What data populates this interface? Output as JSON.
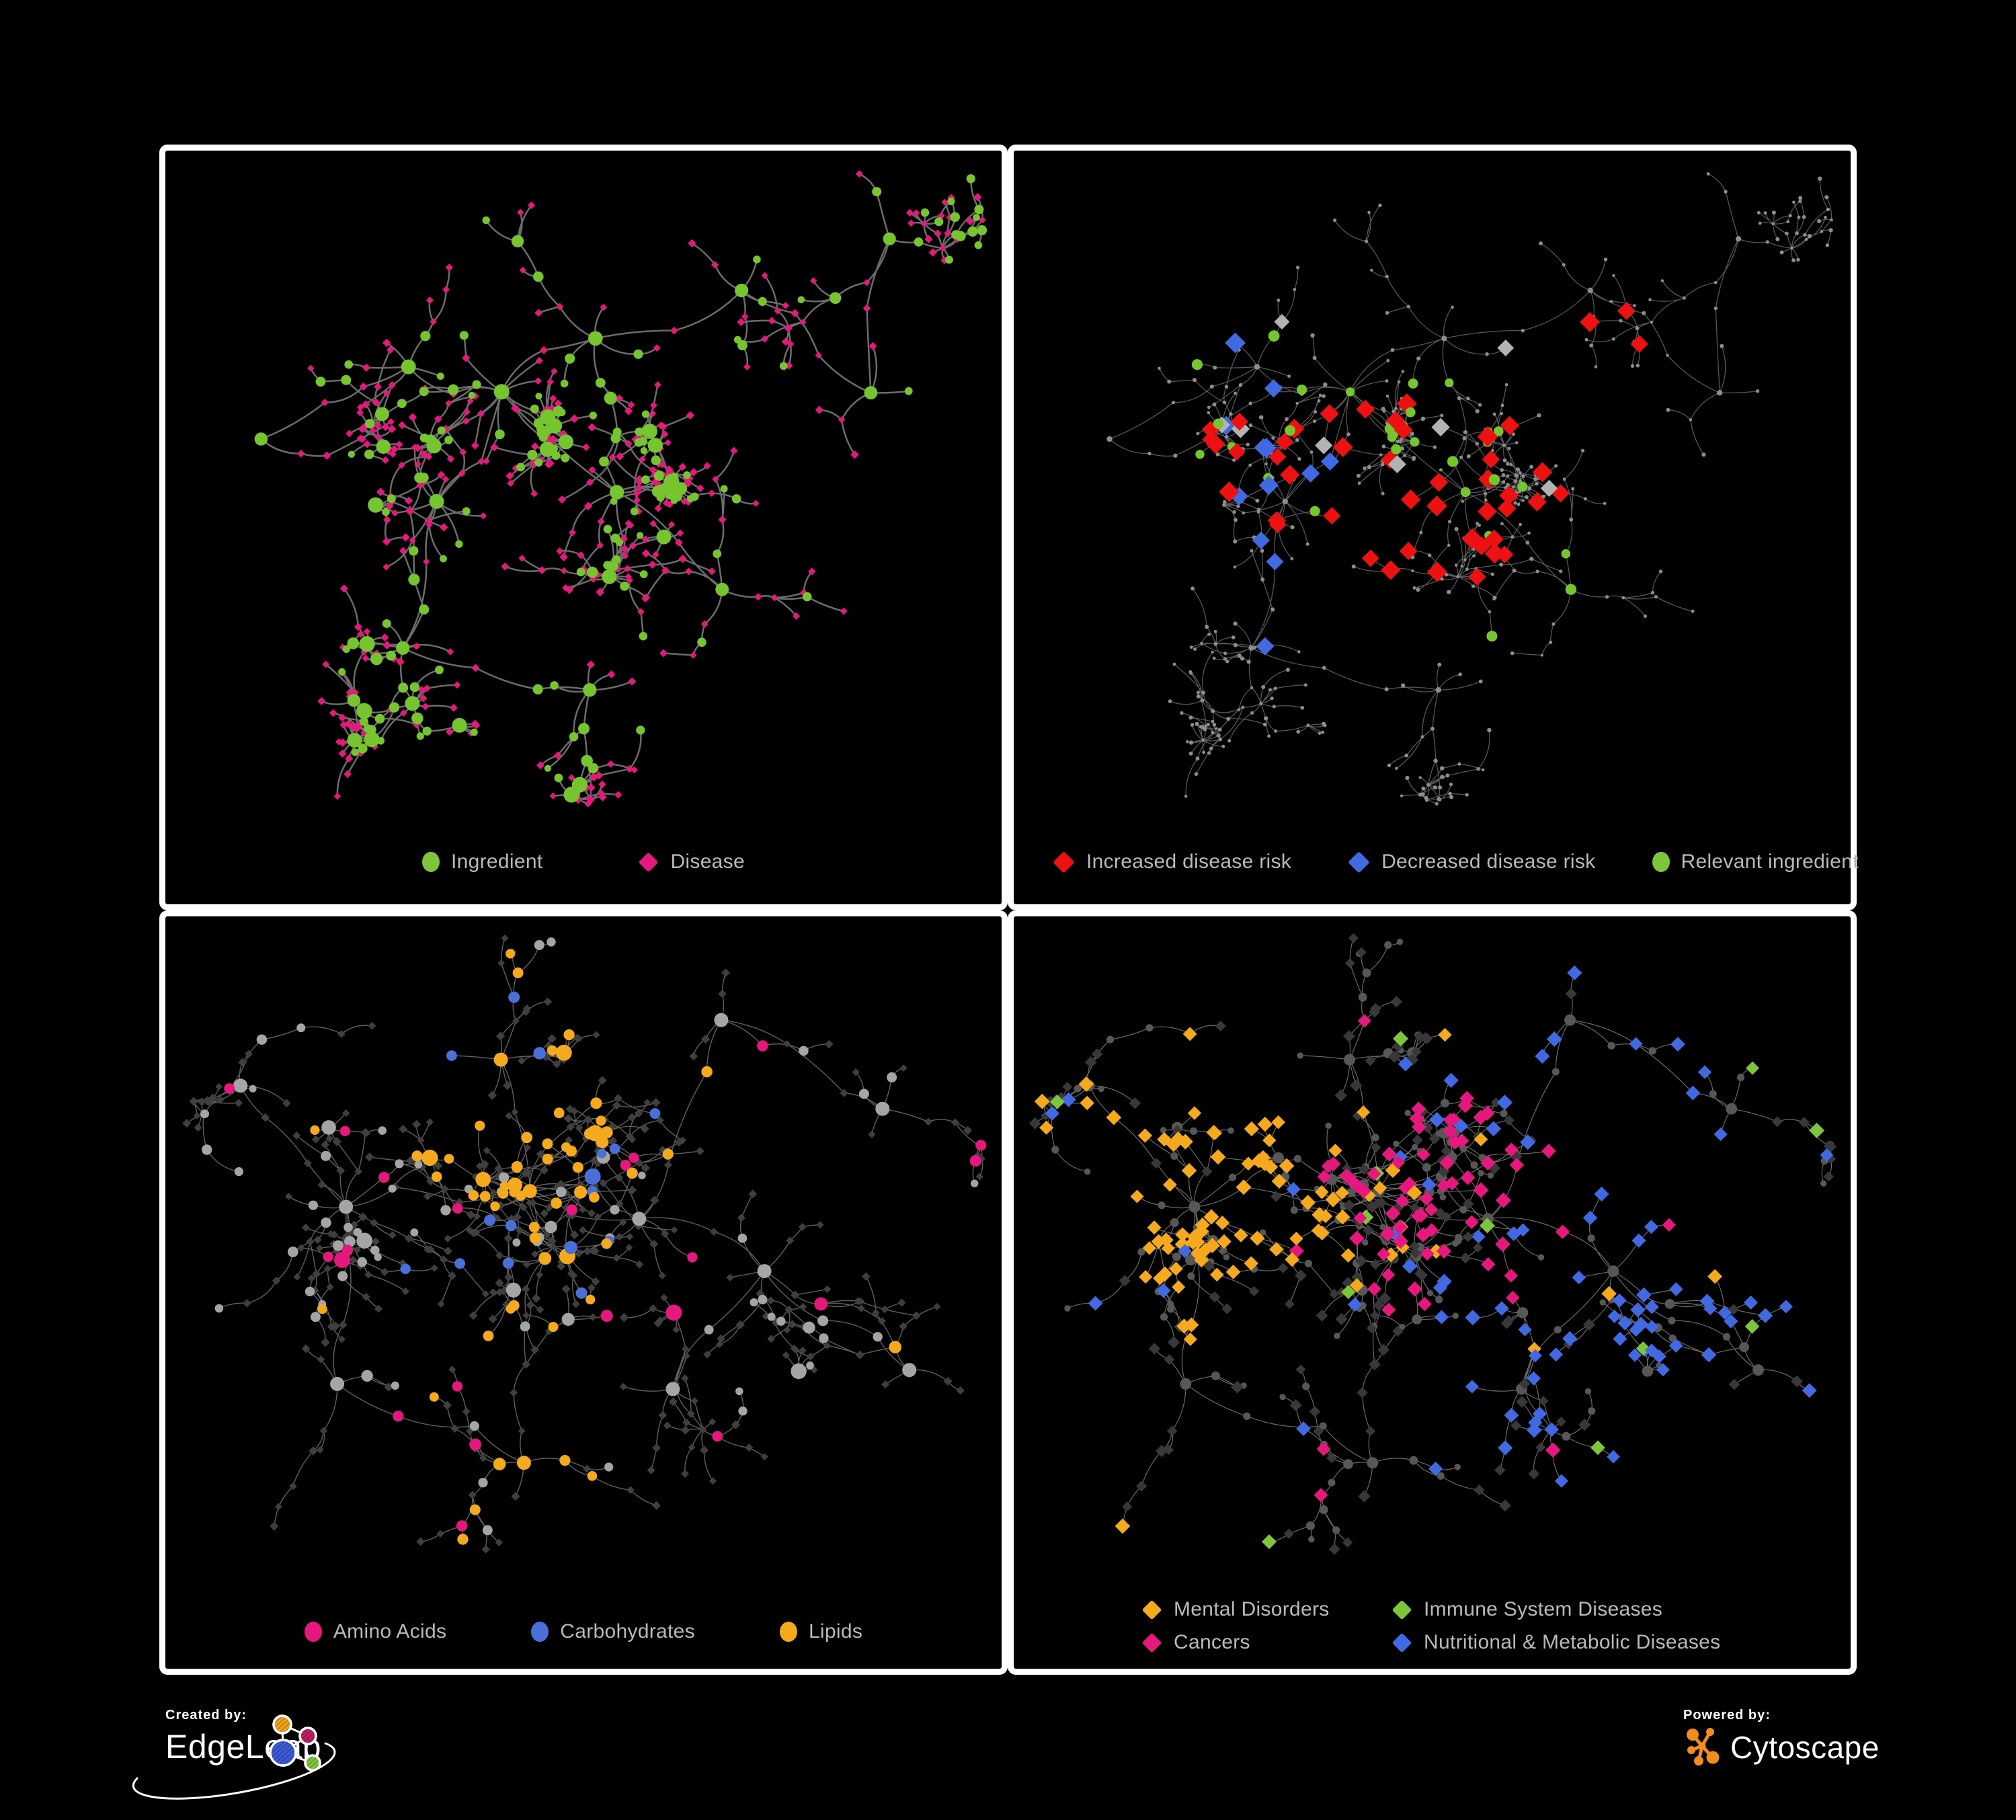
{
  "page": {
    "background": "#000000",
    "panel_border": "#ffffff",
    "panel_background": "#000000",
    "legend_text_color": "#b9b9b9"
  },
  "panels": [
    {
      "id": "ingredient-disease",
      "position": "top-left",
      "legend": [
        {
          "label": "Ingredient",
          "shape": "circle",
          "color": "#7dc63c"
        },
        {
          "label": "Disease",
          "shape": "diamond",
          "color": "#e6187d"
        }
      ],
      "network": {
        "edge_color": "#787878",
        "edge_width": 2.5,
        "edge_opacity": 0.9,
        "circle_color": "#76c52f",
        "diamond_color": "#e6187d"
      }
    },
    {
      "id": "disease-risk",
      "position": "top-right",
      "legend": [
        {
          "label": "Increased disease risk",
          "shape": "diamond",
          "color": "#ee1111"
        },
        {
          "label": "Decreased disease risk",
          "shape": "diamond",
          "color": "#4169e1"
        },
        {
          "label": "Relevant ingredient",
          "shape": "circle",
          "color": "#7dc63c"
        }
      ],
      "network": {
        "edge_color": "#696969",
        "edge_width": 1.25,
        "edge_opacity": 0.85,
        "base_color": "#8d8d8d",
        "groups": [
          {
            "name": "increased-disease-risk",
            "color": "#ee1111",
            "shape": "diamond",
            "count": 46,
            "zones": [
              0,
              2,
              3,
              4,
              5,
              11
            ],
            "scatter": 0.015,
            "sigma": 0.13,
            "size": 10
          },
          {
            "name": "decreased-disease-risk",
            "color": "#4169e1",
            "shape": "diamond",
            "count": 12,
            "zones": [
              1,
              3
            ],
            "scatter": 0.008,
            "sigma": 0.1,
            "size": 10
          },
          {
            "name": "neutral",
            "color": "#b3b3b3",
            "shape": "diamond",
            "count": 8,
            "zones": [
              1,
              2,
              4
            ],
            "scatter": 0.005,
            "sigma": 0.12,
            "size": 9
          },
          {
            "name": "relevant-ingredient",
            "color": "#76c52f",
            "shape": "circle",
            "count": 32,
            "zones": [
              0,
              1,
              2,
              3,
              4
            ],
            "scatter": 0.02,
            "sigma": 0.13,
            "size": 6.5
          }
        ]
      }
    },
    {
      "id": "nutrient-classes",
      "position": "bottom-left",
      "legend": [
        {
          "label": "Amino Acids",
          "shape": "circle",
          "color": "#e6187d"
        },
        {
          "label": "Carbohydrates",
          "shape": "circle",
          "color": "#4a6fd8"
        },
        {
          "label": "Lipids",
          "shape": "circle",
          "color": "#f5a91c"
        }
      ],
      "network": {
        "edge_color": "#939393",
        "edge_width": 1.4,
        "edge_opacity": 0.65,
        "circle_base": "#a5a5a5",
        "diamond_base": "#3f3f3f",
        "groups": [
          {
            "name": "lipids",
            "color": "#f5a91c",
            "shape": "circle",
            "count": 62,
            "zones": [
              4,
              1,
              8
            ],
            "scatter": 0.05,
            "sigma": 0.12,
            "size": 7
          },
          {
            "name": "carbohydrates",
            "color": "#4a6fd8",
            "shape": "circle",
            "count": 16,
            "zones": [
              4,
              1
            ],
            "scatter": 0.02,
            "sigma": 0.09,
            "size": 7
          },
          {
            "name": "amino-acids",
            "color": "#e6187d",
            "shape": "circle",
            "count": 22,
            "zones": [],
            "scatter": 1,
            "sigma": 0.12,
            "size": 7.5
          }
        ]
      }
    },
    {
      "id": "disease-categories",
      "position": "bottom-right",
      "legend": [
        {
          "label": "Mental Disorders",
          "shape": "diamond",
          "color": "#f5a91c"
        },
        {
          "label": "Immune System Diseases",
          "shape": "diamond",
          "color": "#7dc63c"
        },
        {
          "label": "Cancers",
          "shape": "diamond",
          "color": "#e6187d"
        },
        {
          "label": "Nutritional & Metabolic Diseases",
          "shape": "diamond",
          "color": "#4169e1"
        }
      ],
      "network": {
        "edge_color": "#8b8b8b",
        "edge_width": 1.15,
        "edge_opacity": 0.8,
        "circle_base": "#575757",
        "diamond_base": "#383838",
        "groups": [
          {
            "name": "mental-disorders",
            "color": "#f5a91c",
            "shape": "diamond",
            "count": 95,
            "zones": [
              0
            ],
            "scatter": 0.012,
            "sigma": 0.11,
            "size": 7
          },
          {
            "name": "cancers",
            "color": "#e6187d",
            "shape": "diamond",
            "count": 68,
            "zones": [
              1,
              2
            ],
            "scatter": 0.02,
            "sigma": 0.11,
            "size": 7
          },
          {
            "name": "nutritional-metabolic-diseases",
            "color": "#4169e1",
            "shape": "diamond",
            "count": 82,
            "zones": [
              3,
              5,
              6,
              9,
              11
            ],
            "scatter": 0.06,
            "sigma": 0.12,
            "size": 7
          },
          {
            "name": "immune-system-diseases",
            "color": "#7dc63c",
            "shape": "diamond",
            "count": 12,
            "zones": [],
            "scatter": 1,
            "sigma": 0.12,
            "size": 7
          }
        ]
      }
    }
  ],
  "footer": {
    "created_by_label": "Created by:",
    "created_by_name": "EdgeLeap",
    "powered_by_label": "Powered by:",
    "powered_by_name": "Cytoscape",
    "edgeleap_logo_colors": {
      "orange": "#f0a31c",
      "magenta": "#c21e63",
      "blue": "#3b5bd6",
      "green": "#7dc63c",
      "outline": "#ffffff"
    },
    "cytoscape_logo_color": "#f28c1e"
  },
  "chart_data": {
    "type": "network",
    "panels": [
      {
        "panel": "top-left",
        "content": "full association network",
        "node_types": [
          {
            "type": "Ingredient",
            "shape": "circle",
            "color": "#7dc63c"
          },
          {
            "type": "Disease",
            "shape": "diamond",
            "color": "#e6187d"
          }
        ]
      },
      {
        "panel": "top-right",
        "content": "same network, risk-direction highlights on gray base",
        "node_types": [
          {
            "type": "Increased disease risk",
            "shape": "diamond",
            "color": "#ee1111"
          },
          {
            "type": "Decreased disease risk",
            "shape": "diamond",
            "color": "#4169e1"
          },
          {
            "type": "Relevant ingredient",
            "shape": "circle",
            "color": "#7dc63c"
          }
        ]
      },
      {
        "panel": "bottom-left",
        "content": "same network, ingredient-class highlights",
        "node_types": [
          {
            "type": "Amino Acids",
            "shape": "circle",
            "color": "#e6187d"
          },
          {
            "type": "Carbohydrates",
            "shape": "circle",
            "color": "#4a6fd8"
          },
          {
            "type": "Lipids",
            "shape": "circle",
            "color": "#f5a91c"
          }
        ]
      },
      {
        "panel": "bottom-right",
        "content": "same network, disease-category highlights",
        "node_types": [
          {
            "type": "Mental Disorders",
            "shape": "diamond",
            "color": "#f5a91c"
          },
          {
            "type": "Immune System Diseases",
            "shape": "diamond",
            "color": "#7dc63c"
          },
          {
            "type": "Cancers",
            "shape": "diamond",
            "color": "#e6187d"
          },
          {
            "type": "Nutritional & Metabolic Diseases",
            "shape": "diamond",
            "color": "#4169e1"
          }
        ]
      }
    ]
  }
}
